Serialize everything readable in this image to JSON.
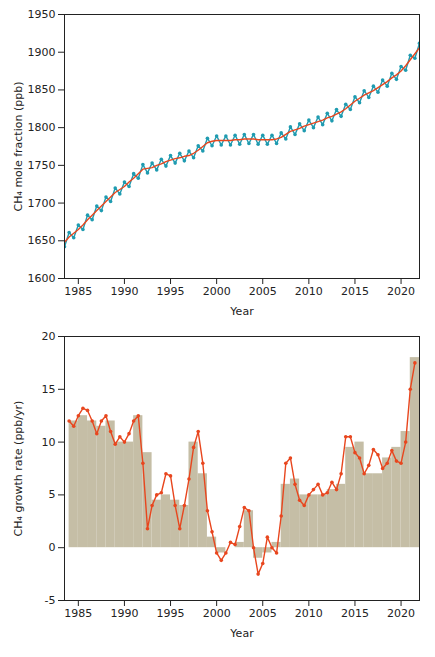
{
  "chart_data": [
    {
      "type": "line",
      "x_label": "Year",
      "y_label": "CH₄ mole fraction (ppb)",
      "xlim": [
        1983.5,
        2022
      ],
      "xticks": [
        1985,
        1990,
        1995,
        2000,
        2005,
        2010,
        2015,
        2020
      ],
      "ylim": [
        1600,
        1950
      ],
      "yticks": [
        1600,
        1650,
        1700,
        1750,
        1800,
        1850,
        1900,
        1950
      ],
      "x": [
        1983.5,
        1984,
        1984.5,
        1985,
        1985.5,
        1986,
        1986.5,
        1987,
        1987.5,
        1988,
        1988.5,
        1989,
        1989.5,
        1990,
        1990.5,
        1991,
        1991.5,
        1992,
        1992.5,
        1993,
        1993.5,
        1994,
        1994.5,
        1995,
        1995.5,
        1996,
        1996.5,
        1997,
        1997.5,
        1998,
        1998.5,
        1999,
        1999.5,
        2000,
        2000.5,
        2001,
        2001.5,
        2002,
        2002.5,
        2003,
        2003.5,
        2004,
        2004.5,
        2005,
        2005.5,
        2006,
        2006.5,
        2007,
        2007.5,
        2008,
        2008.5,
        2009,
        2009.5,
        2010,
        2010.5,
        2011,
        2011.5,
        2012,
        2012.5,
        2013,
        2013.5,
        2014,
        2014.5,
        2015,
        2015.5,
        2016,
        2016.5,
        2017,
        2017.5,
        2018,
        2018.5,
        2019,
        2019.5,
        2020,
        2020.5,
        2021,
        2021.5,
        2022
      ],
      "series": [
        {
          "type": "line",
          "color": "#1f9bb0",
          "marker": "circle",
          "values": [
            1642,
            1661,
            1654,
            1671,
            1665,
            1684,
            1678,
            1696,
            1690,
            1708,
            1702,
            1720,
            1712,
            1728,
            1722,
            1739,
            1733,
            1751,
            1740,
            1753,
            1744,
            1758,
            1749,
            1763,
            1753,
            1766,
            1756,
            1769,
            1760,
            1776,
            1769,
            1786,
            1776,
            1789,
            1777,
            1789,
            1777,
            1790,
            1778,
            1791,
            1779,
            1791,
            1778,
            1790,
            1778,
            1790,
            1779,
            1793,
            1785,
            1801,
            1791,
            1805,
            1796,
            1810,
            1800,
            1814,
            1804,
            1819,
            1809,
            1824,
            1815,
            1831,
            1824,
            1841,
            1833,
            1849,
            1840,
            1855,
            1847,
            1863,
            1855,
            1872,
            1864,
            1881,
            1876,
            1896,
            1892,
            1912
          ]
        },
        {
          "type": "line",
          "color": "#e8461e",
          "values": [
            1648,
            1655,
            1660,
            1665,
            1671,
            1678,
            1684,
            1690,
            1696,
            1702,
            1708,
            1714,
            1718,
            1722,
            1728,
            1733,
            1739,
            1745,
            1746,
            1747,
            1750,
            1752,
            1755,
            1757,
            1759,
            1760,
            1762,
            1763,
            1766,
            1770,
            1775,
            1780,
            1782,
            1783,
            1783,
            1783,
            1783,
            1784,
            1784,
            1785,
            1785,
            1785,
            1784,
            1784,
            1784,
            1784,
            1785,
            1787,
            1791,
            1795,
            1797,
            1799,
            1802,
            1804,
            1806,
            1808,
            1810,
            1813,
            1815,
            1818,
            1821,
            1825,
            1830,
            1835,
            1839,
            1843,
            1846,
            1849,
            1853,
            1857,
            1861,
            1866,
            1870,
            1875,
            1882,
            1890,
            1898,
            1906
          ]
        }
      ]
    },
    {
      "type": "bar",
      "x_label": "Year",
      "y_label": "CH₄ growth rate (ppb/yr)",
      "xlim": [
        1983.5,
        2022
      ],
      "xticks": [
        1985,
        1990,
        1995,
        2000,
        2005,
        2010,
        2015,
        2020
      ],
      "ylim": [
        -5,
        20
      ],
      "yticks": [
        -5,
        0,
        5,
        10,
        15,
        20
      ],
      "series": [
        {
          "type": "bar",
          "color": "#c5bea6",
          "bins": [
            1984,
            1985,
            1986,
            1987,
            1988,
            1989,
            1990,
            1991,
            1992,
            1993,
            1994,
            1995,
            1996,
            1997,
            1998,
            1999,
            2000,
            2001,
            2002,
            2003,
            2004,
            2005,
            2006,
            2007,
            2008,
            2009,
            2010,
            2011,
            2012,
            2013,
            2014,
            2015,
            2016,
            2017,
            2018,
            2019,
            2020,
            2021,
            2022
          ],
          "values": [
            12,
            12.5,
            12,
            11.5,
            12,
            10,
            10,
            12.5,
            9,
            4.5,
            5,
            4.5,
            4,
            10,
            7,
            1,
            -0.5,
            0,
            0.5,
            3.5,
            -1,
            -0.5,
            0.5,
            6,
            6.5,
            5,
            5,
            5,
            5.5,
            6,
            9.5,
            10,
            7,
            7,
            8.5,
            9.5,
            11,
            18
          ]
        },
        {
          "type": "line",
          "color": "#e8461e",
          "marker": "circle",
          "x": [
            1984,
            1984.5,
            1985,
            1985.5,
            1986,
            1986.5,
            1987,
            1987.5,
            1988,
            1988.5,
            1989,
            1989.5,
            1990,
            1990.5,
            1991,
            1991.5,
            1992,
            1992.5,
            1993,
            1993.5,
            1994,
            1994.5,
            1995,
            1995.5,
            1996,
            1996.5,
            1997,
            1997.5,
            1998,
            1998.5,
            1999,
            1999.5,
            2000,
            2000.5,
            2001,
            2001.5,
            2002,
            2002.5,
            2003,
            2003.5,
            2004,
            2004.5,
            2005,
            2005.5,
            2006,
            2006.5,
            2007,
            2007.5,
            2008,
            2008.5,
            2009,
            2009.5,
            2010,
            2010.5,
            2011,
            2011.5,
            2012,
            2012.5,
            2013,
            2013.5,
            2014,
            2014.5,
            2015,
            2015.5,
            2016,
            2016.5,
            2017,
            2017.5,
            2018,
            2018.5,
            2019,
            2019.5,
            2020,
            2020.5,
            2021,
            2021.5
          ],
          "values": [
            12,
            11.5,
            12.5,
            13.2,
            13,
            12,
            10.8,
            12,
            12.5,
            11,
            9.8,
            10.5,
            10,
            10.8,
            12,
            12.5,
            8,
            1.8,
            4,
            5,
            5.2,
            7,
            6.8,
            4,
            1.8,
            4,
            6.5,
            9.5,
            11,
            8,
            3.5,
            1.5,
            -0.5,
            -1.2,
            -0.5,
            0.5,
            0.3,
            2,
            3.8,
            3.5,
            0,
            -2.5,
            -1.5,
            1,
            0,
            -0.5,
            3,
            8,
            8.5,
            6,
            4.5,
            4,
            5,
            5.5,
            6,
            5,
            5.2,
            6.2,
            5.5,
            7,
            10.5,
            10.5,
            9,
            8.5,
            7,
            7.8,
            9.3,
            8.8,
            7.5,
            8,
            9.2,
            8.2,
            8,
            10,
            15,
            17.5
          ]
        }
      ]
    }
  ]
}
